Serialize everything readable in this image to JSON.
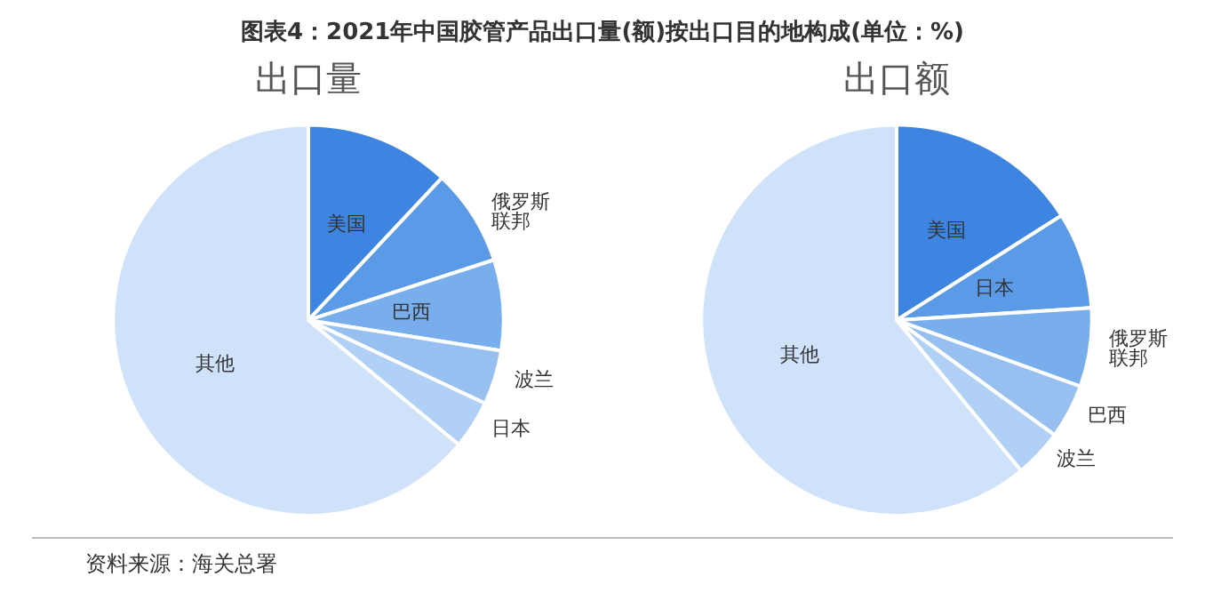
{
  "chart_data": [
    {
      "type": "pie",
      "title": "图表4：2021年中国胶管产品出口量(额)按出口目的地构成(单位：%)",
      "subtitle": "出口量",
      "categories": [
        "美国",
        "俄罗斯联邦",
        "巴西",
        "波兰",
        "日本",
        "其他"
      ],
      "values": [
        12,
        8,
        7.5,
        4.5,
        4,
        64
      ],
      "colors": [
        "#3d85e0",
        "#5b9ae6",
        "#79aeed",
        "#97c0f0",
        "#b0d0f5",
        "#cfe2fa"
      ],
      "legend": false,
      "annotations": [
        "资料来源：海关总署"
      ]
    },
    {
      "type": "pie",
      "subtitle": "出口额",
      "categories": [
        "美国",
        "日本",
        "俄罗斯联邦",
        "巴西",
        "波兰",
        "其他"
      ],
      "values": [
        16,
        8,
        6.5,
        4.5,
        4,
        61
      ],
      "colors": [
        "#3d85e0",
        "#5b9ae6",
        "#79aeed",
        "#97c0f0",
        "#b0d0f5",
        "#cfe2fa"
      ],
      "legend": false
    }
  ]
}
